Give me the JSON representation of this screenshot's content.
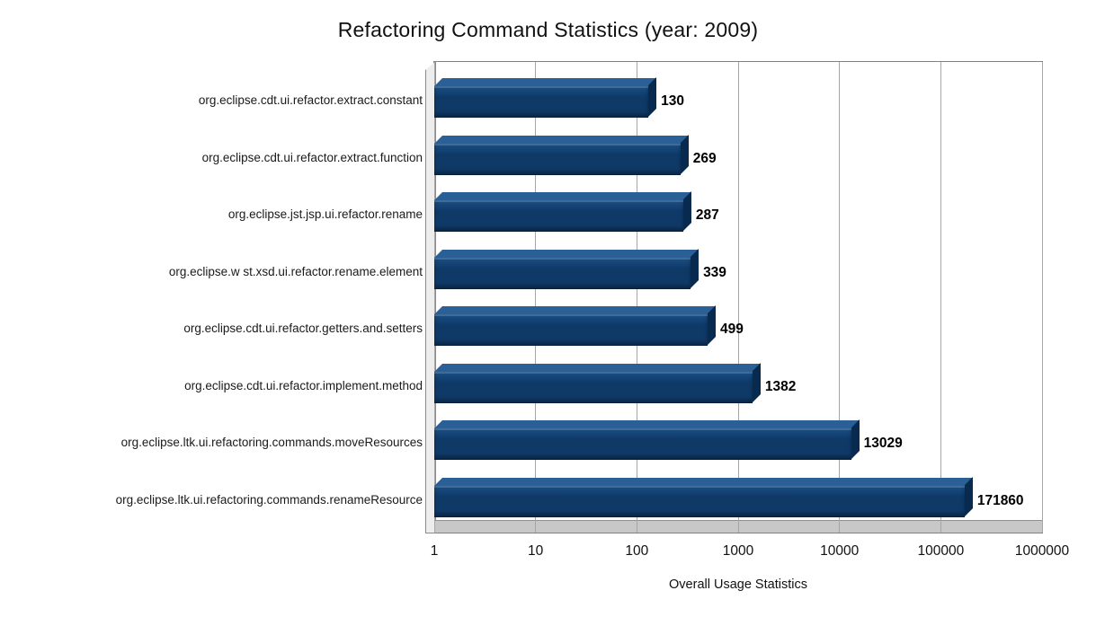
{
  "chart_data": {
    "type": "bar",
    "orientation": "horizontal",
    "style": "3d-bars",
    "title": "Refactoring Command Statistics (year: 2009)",
    "xlabel": "Overall Usage Statistics",
    "x_scale": "log",
    "xlim": [
      1,
      1000000
    ],
    "x_ticks": [
      1,
      10,
      100,
      1000,
      10000,
      100000,
      1000000
    ],
    "grid": "vertical",
    "legend": "none",
    "categories": [
      "org.eclipse.cdt.ui.refactor.extract.constant",
      "org.eclipse.cdt.ui.refactor.extract.function",
      "org.eclipse.jst.jsp.ui.refactor.rename",
      "org.eclipse.w st.xsd.ui.refactor.rename.element",
      "org.eclipse.cdt.ui.refactor.getters.and.setters",
      "org.eclipse.cdt.ui.refactor.implement.method",
      "org.eclipse.ltk.ui.refactoring.commands.moveResources",
      "org.eclipse.ltk.ui.refactoring.commands.renameResource"
    ],
    "values": [
      130,
      269,
      287,
      339,
      499,
      1382,
      13029,
      171860
    ],
    "colors": {
      "bar_front": "#0f3a68",
      "bar_top": "#2a6096",
      "bar_side": "#072a4e",
      "gridline": "#a6a6a6",
      "plot_border": "#808080",
      "floor": "#c8c8c8",
      "wall": "#ededed",
      "text": "#000000",
      "background": "#ffffff"
    }
  }
}
